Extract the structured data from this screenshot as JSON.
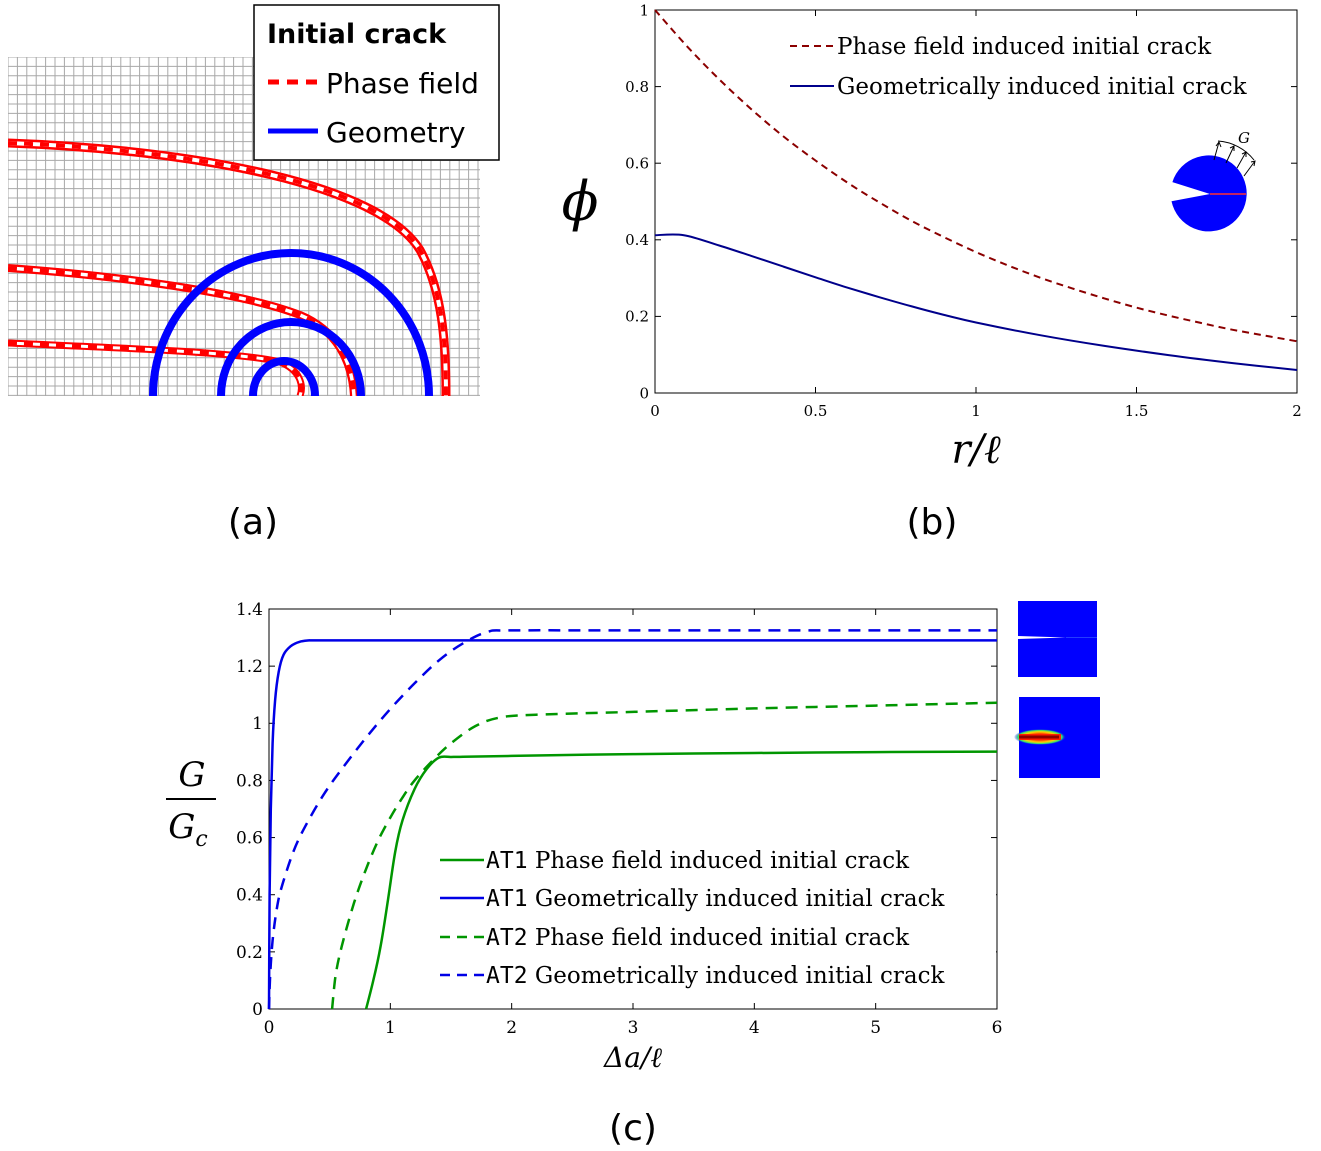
{
  "panel_labels": {
    "a": "(a)",
    "b": "(b)",
    "c": "(c)"
  },
  "panel_a": {
    "legend_title": "Initial crack",
    "legend_items": [
      {
        "label": "Phase field",
        "color": "#ff0000",
        "style": "dashed"
      },
      {
        "label": "Geometry",
        "color": "#0000ff",
        "style": "solid"
      }
    ],
    "mesh_color": "#a8a8a8"
  },
  "chart_data": [
    {
      "type": "line",
      "panel": "b",
      "xlabel": "r/ℓ",
      "ylabel": "ϕ",
      "xlim": [
        0,
        2
      ],
      "ylim": [
        0,
        1
      ],
      "x_ticks": [
        "0",
        "0.5",
        "1",
        "1.5",
        "2"
      ],
      "y_ticks": [
        "0",
        "0.2",
        "0.4",
        "0.6",
        "0.8",
        "1"
      ],
      "grid": false,
      "legend_position": "top-right",
      "inset_label": "G",
      "series": [
        {
          "name": "Phase field induced initial crack",
          "color": "#8b0000",
          "style": "dashed",
          "x": [
            0,
            0.1,
            0.2,
            0.3,
            0.4,
            0.5,
            0.6,
            0.7,
            0.8,
            0.9,
            1.0,
            1.1,
            1.2,
            1.3,
            1.4,
            1.5,
            1.6,
            1.7,
            1.8,
            1.9,
            2.0
          ],
          "y": [
            1.0,
            0.905,
            0.819,
            0.741,
            0.67,
            0.607,
            0.549,
            0.497,
            0.449,
            0.407,
            0.368,
            0.333,
            0.301,
            0.273,
            0.247,
            0.223,
            0.202,
            0.183,
            0.165,
            0.15,
            0.135
          ]
        },
        {
          "name": "Geometrically induced initial crack",
          "color": "#00008b",
          "style": "solid",
          "x": [
            0,
            0.09,
            0.2,
            0.3,
            0.4,
            0.5,
            0.6,
            0.7,
            0.8,
            0.9,
            1.0,
            1.2,
            1.4,
            1.6,
            1.8,
            2.0
          ],
          "y": [
            0.412,
            0.412,
            0.385,
            0.358,
            0.33,
            0.302,
            0.275,
            0.25,
            0.226,
            0.204,
            0.184,
            0.151,
            0.123,
            0.099,
            0.078,
            0.06
          ]
        }
      ]
    },
    {
      "type": "line",
      "panel": "c",
      "xlabel": "Δa/ℓ",
      "ylabel_num": "G",
      "ylabel_den": "G",
      "ylabel_den_sub": "c",
      "xlim": [
        0,
        6
      ],
      "ylim": [
        0,
        1.4
      ],
      "x_ticks": [
        "0",
        "1",
        "2",
        "3",
        "4",
        "5",
        "6"
      ],
      "y_ticks": [
        "0",
        "0.2",
        "0.4",
        "0.6",
        "0.8",
        "1",
        "1.2",
        "1.4"
      ],
      "grid": false,
      "legend_position": "bottom-right",
      "series": [
        {
          "name_code": "AT1",
          "name_text": "Phase field induced initial crack",
          "color": "#009600",
          "style": "solid",
          "x": [
            0.8,
            0.86,
            0.92,
            0.98,
            1.04,
            1.1,
            1.2,
            1.3,
            1.4,
            1.5,
            1.6,
            2.0,
            3.0,
            4.0,
            5.0,
            6.0
          ],
          "y": [
            0.0,
            0.1,
            0.22,
            0.38,
            0.55,
            0.66,
            0.77,
            0.84,
            0.88,
            0.882,
            0.883,
            0.886,
            0.892,
            0.896,
            0.899,
            0.901
          ]
        },
        {
          "name_code": "AT1",
          "name_text": "Geometrically induced initial crack",
          "color": "#0000e6",
          "style": "solid",
          "x": [
            0.0,
            0.005,
            0.015,
            0.03,
            0.05,
            0.08,
            0.12,
            0.18,
            0.25,
            0.33,
            0.4,
            1.0,
            2.0,
            3.0,
            4.0,
            5.0,
            6.0
          ],
          "y": [
            0.0,
            0.4,
            0.7,
            0.93,
            1.08,
            1.18,
            1.24,
            1.27,
            1.285,
            1.29,
            1.29,
            1.29,
            1.29,
            1.29,
            1.29,
            1.29,
            1.29
          ]
        },
        {
          "name_code": "AT2",
          "name_text": "Phase field induced initial crack",
          "color": "#009600",
          "style": "dashed",
          "x": [
            0.52,
            0.55,
            0.6,
            0.7,
            0.8,
            0.9,
            1.0,
            1.1,
            1.2,
            1.35,
            1.5,
            1.7,
            1.9,
            2.2,
            3.0,
            4.0,
            5.0,
            6.0
          ],
          "y": [
            0.0,
            0.12,
            0.22,
            0.37,
            0.49,
            0.59,
            0.67,
            0.74,
            0.8,
            0.87,
            0.93,
            0.99,
            1.02,
            1.03,
            1.04,
            1.052,
            1.062,
            1.072
          ]
        },
        {
          "name_code": "AT2",
          "name_text": "Geometrically induced initial crack",
          "color": "#0000e6",
          "style": "dashed",
          "x": [
            0.0,
            0.01,
            0.03,
            0.06,
            0.1,
            0.2,
            0.3,
            0.45,
            0.6,
            0.8,
            1.0,
            1.2,
            1.4,
            1.6,
            1.8,
            2.0,
            3.0,
            4.0,
            5.0,
            6.0
          ],
          "y": [
            0.0,
            0.12,
            0.24,
            0.34,
            0.42,
            0.55,
            0.64,
            0.75,
            0.84,
            0.95,
            1.05,
            1.14,
            1.22,
            1.28,
            1.32,
            1.325,
            1.325,
            1.325,
            1.325,
            1.325
          ]
        }
      ]
    }
  ]
}
